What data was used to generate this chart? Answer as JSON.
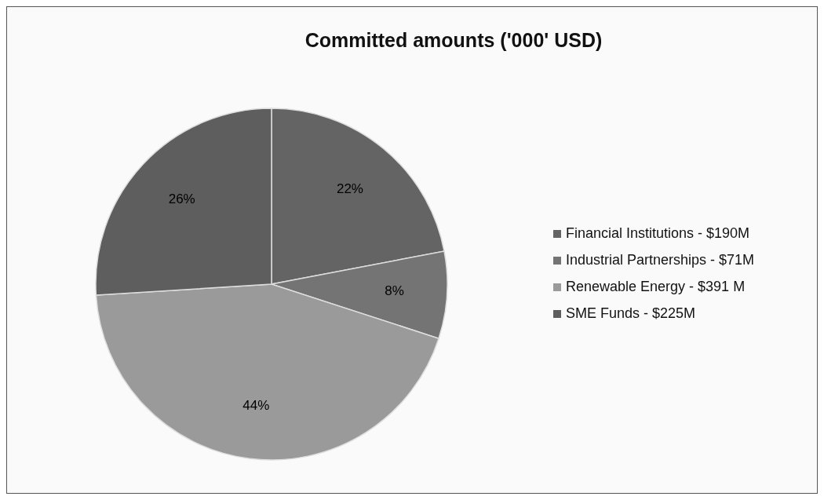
{
  "chart_data": {
    "type": "pie",
    "title": "Committed amounts ('000' USD)",
    "categories": [
      "Financial Institutions  - $190M",
      "Industrial Partnerships  - $71M",
      "Renewable Energy - $391 M",
      "SME Funds - $225M"
    ],
    "values": [
      22,
      8,
      44,
      26
    ],
    "colors": [
      "#646464",
      "#747474",
      "#9a9a9a",
      "#5e5e5e"
    ],
    "value_labels": [
      "22%",
      "8%",
      "44%",
      "26%"
    ],
    "legend": "right"
  }
}
